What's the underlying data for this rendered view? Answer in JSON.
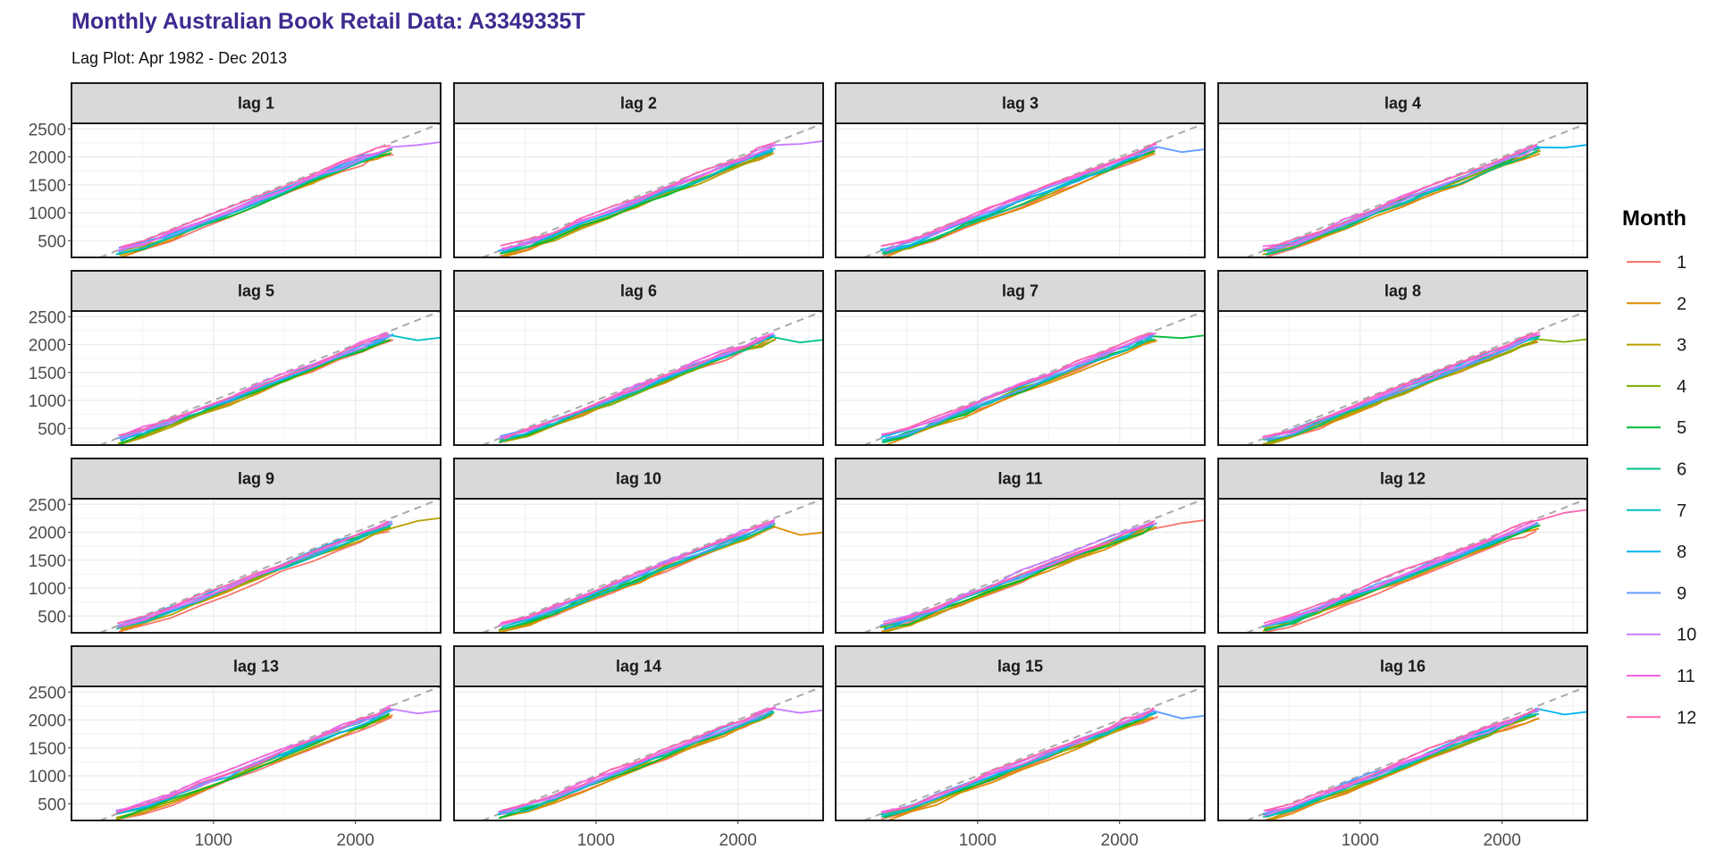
{
  "title": "Monthly Australian Book Retail Data: A3349335T",
  "subtitle": "Lag Plot: Apr 1982 - Dec 2013",
  "chart_data": {
    "type": "line",
    "kind": "lag plot (faceted)",
    "panels": [
      "lag 1",
      "lag 2",
      "lag 3",
      "lag 4",
      "lag 5",
      "lag 6",
      "lag 7",
      "lag 8",
      "lag 9",
      "lag 10",
      "lag 11",
      "lag 12",
      "lag 13",
      "lag 14",
      "lag 15",
      "lag 16"
    ],
    "layout": {
      "rows": 4,
      "cols": 4
    },
    "xlim": [
      0,
      2600
    ],
    "ylim": [
      200,
      2600
    ],
    "x_ticks": [
      1000,
      2000
    ],
    "y_ticks": [
      500,
      1000,
      1500,
      2000,
      2500
    ],
    "reference_line": "y = x (dashed, grey)",
    "legend": {
      "title": "Month",
      "position": "right",
      "entries": [
        {
          "label": "1",
          "color": "#F8766D"
        },
        {
          "label": "2",
          "color": "#DE8C00"
        },
        {
          "label": "3",
          "color": "#B79F00"
        },
        {
          "label": "4",
          "color": "#7CAE00"
        },
        {
          "label": "5",
          "color": "#00BA38"
        },
        {
          "label": "6",
          "color": "#00C08B"
        },
        {
          "label": "7",
          "color": "#00BFC4"
        },
        {
          "label": "8",
          "color": "#00B4F0"
        },
        {
          "label": "9",
          "color": "#619CFF"
        },
        {
          "label": "10",
          "color": "#C77CFF"
        },
        {
          "label": "11",
          "color": "#F564E3"
        },
        {
          "label": "12",
          "color": "#FF64B0"
        }
      ]
    },
    "series_path": {
      "description": "approximate per-month trajectory (x = lagged value, y = value), shared shape used by all months",
      "x": [
        330,
        520,
        700,
        900,
        1100,
        1300,
        1500,
        1700,
        1900,
        2050,
        2150,
        2250
      ],
      "y": [
        300,
        430,
        600,
        800,
        1000,
        1200,
        1400,
        1600,
        1800,
        1950,
        2050,
        2150
      ]
    },
    "panel_highlights": [
      {
        "panel": "lag 1",
        "month": "10",
        "end": [
          2650,
          2280
        ]
      },
      {
        "panel": "lag 2",
        "month": "10",
        "end": [
          2650,
          2300
        ]
      },
      {
        "panel": "lag 3",
        "month": "9",
        "end": [
          2650,
          2150
        ]
      },
      {
        "panel": "lag 4",
        "month": "8",
        "end": [
          2650,
          2230
        ]
      },
      {
        "panel": "lag 5",
        "month": "7",
        "end": [
          2650,
          2140
        ]
      },
      {
        "panel": "lag 6",
        "month": "6",
        "end": [
          2650,
          2100
        ]
      },
      {
        "panel": "lag 7",
        "month": "5",
        "end": [
          2650,
          2180
        ]
      },
      {
        "panel": "lag 8",
        "month": "4",
        "end": [
          2650,
          2110
        ]
      },
      {
        "panel": "lag 9",
        "month": "3",
        "end": [
          2650,
          2270
        ]
      },
      {
        "panel": "lag 10",
        "month": "2",
        "end": [
          2650,
          2010
        ]
      },
      {
        "panel": "lag 11",
        "month": "1",
        "end": [
          2650,
          2230
        ]
      },
      {
        "panel": "lag 12",
        "month": "12",
        "end": [
          2650,
          2420
        ]
      },
      {
        "panel": "lag 13",
        "month": "10",
        "end": [
          2650,
          2180
        ]
      },
      {
        "panel": "lag 14",
        "month": "10",
        "end": [
          2650,
          2190
        ]
      },
      {
        "panel": "lag 15",
        "month": "9",
        "end": [
          2650,
          2090
        ]
      },
      {
        "panel": "lag 16",
        "month": "8",
        "end": [
          2650,
          2160
        ]
      }
    ]
  }
}
